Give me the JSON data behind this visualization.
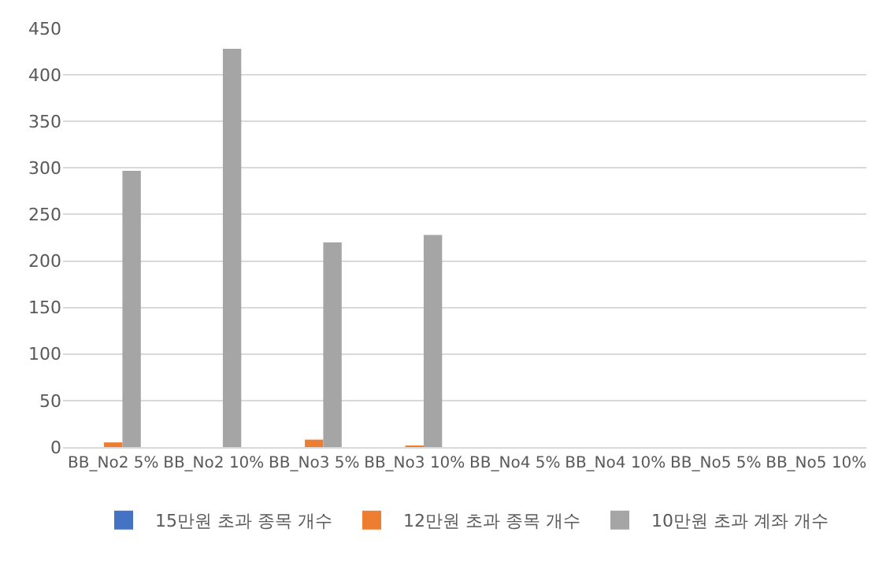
{
  "chart_data": {
    "type": "bar",
    "categories": [
      "BB_No2 5%",
      "BB_No2 10%",
      "BB_No3 5%",
      "BB_No3 10%",
      "BB_No4 5%",
      "BB_No4 10%",
      "BB_No5 5%",
      "BB_No5 10%"
    ],
    "series": [
      {
        "name": "15만원 초과 종목 개수",
        "color": "#4472c4",
        "values": [
          0,
          0,
          0,
          0,
          0,
          0,
          0,
          0
        ]
      },
      {
        "name": "12만원 초과 종목 개수",
        "color": "#ed7d31",
        "values": [
          5,
          0,
          8,
          1,
          0,
          0,
          0,
          0
        ]
      },
      {
        "name": "10만원 초과 계좌 개수",
        "color": "#a5a5a5",
        "values": [
          297,
          428,
          220,
          228,
          0,
          0,
          0,
          0
        ]
      }
    ],
    "ylim": [
      0,
      450
    ],
    "yticks": [
      0,
      50,
      100,
      150,
      200,
      250,
      300,
      350,
      400,
      450
    ],
    "grid": "y",
    "legend": "bottom"
  }
}
